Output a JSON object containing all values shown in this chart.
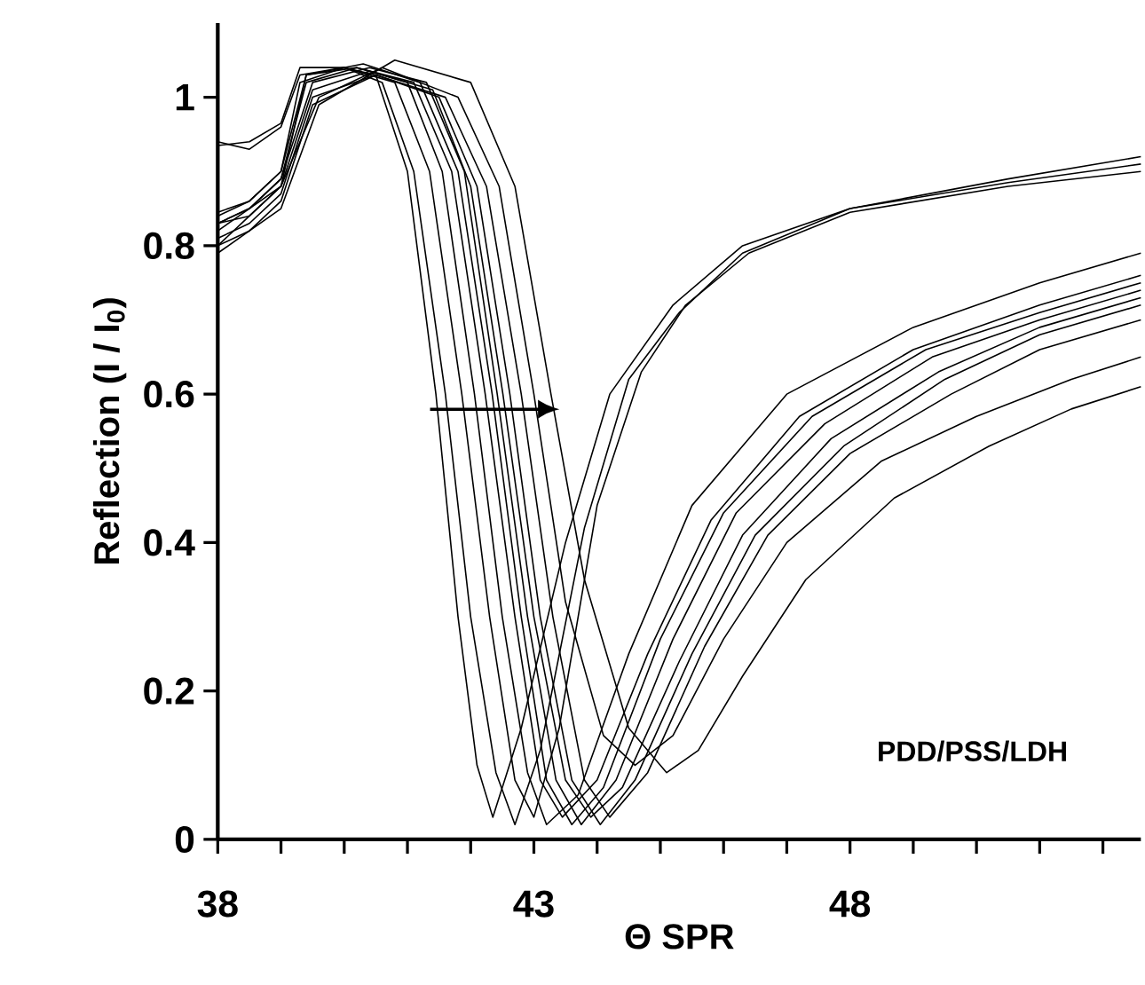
{
  "chart_data": {
    "type": "line",
    "xlabel": "Θ SPR",
    "ylabel": "Reflection (I / I$_{0}$)",
    "annotations": [
      "PDD/PSS/LDH"
    ],
    "xlim": [
      38,
      52.6
    ],
    "ylim": [
      0,
      1.1
    ],
    "xticks": [
      38,
      {
        "value": 39,
        "label": null
      },
      {
        "value": 40,
        "label": null
      },
      {
        "value": 41,
        "label": null
      },
      {
        "value": 42,
        "label": null
      },
      43,
      {
        "value": 44,
        "label": null
      },
      {
        "value": 45,
        "label": null
      },
      {
        "value": 46,
        "label": null
      },
      {
        "value": 47,
        "label": null
      },
      48,
      {
        "value": 49,
        "label": null
      },
      {
        "value": 50,
        "label": null
      },
      {
        "value": 51,
        "label": null
      },
      {
        "value": 52,
        "label": null
      }
    ],
    "yticks": [
      0,
      0.2,
      0.4,
      0.6,
      0.8,
      1
    ],
    "marker": "none",
    "line_style": "solid",
    "series": [
      {
        "color": "#000000",
        "x": [
          38,
          38.5,
          39,
          39.3,
          40,
          40.5,
          41.0,
          41.45,
          41.8,
          42.1,
          42.35,
          42.8,
          43.5,
          44.2,
          45.2,
          46.3,
          48,
          50.5,
          52.6
        ],
        "values": [
          0.94,
          0.93,
          0.96,
          1.03,
          1.04,
          1.03,
          0.9,
          0.6,
          0.3,
          0.1,
          0.03,
          0.15,
          0.4,
          0.6,
          0.72,
          0.8,
          0.85,
          0.89,
          0.92
        ]
      },
      {
        "color": "#000000",
        "x": [
          38,
          38.5,
          39,
          39.3,
          40,
          40.6,
          41.1,
          41.6,
          42,
          42.4,
          42.7,
          43.1,
          43.8,
          44.5,
          45.3,
          46.3,
          48,
          50.5,
          52.6
        ],
        "values": [
          0.935,
          0.94,
          0.965,
          1.04,
          1.04,
          1.02,
          0.9,
          0.6,
          0.3,
          0.09,
          0.02,
          0.12,
          0.42,
          0.62,
          0.71,
          0.79,
          0.85,
          0.885,
          0.91
        ]
      },
      {
        "color": "#000000",
        "x": [
          38,
          38.5,
          39,
          39.3,
          40,
          40.8,
          41.35,
          41.86,
          42.3,
          42.7,
          43.0,
          43.4,
          44.0,
          44.7,
          45.4,
          46.4,
          48,
          50.5,
          52.6
        ],
        "values": [
          0.84,
          0.86,
          0.9,
          1.02,
          1.04,
          1.02,
          0.9,
          0.6,
          0.3,
          0.08,
          0.03,
          0.15,
          0.45,
          0.63,
          0.72,
          0.79,
          0.845,
          0.88,
          0.9
        ]
      },
      {
        "color": "#000000",
        "x": [
          38,
          38.5,
          39,
          39.4,
          40.2,
          41.0,
          41.55,
          42.06,
          42.5,
          42.9,
          43.2,
          43.7,
          44.5,
          45.5,
          47,
          49,
          51,
          52.6
        ],
        "values": [
          0.83,
          0.85,
          0.89,
          1.02,
          1.04,
          1.02,
          0.9,
          0.6,
          0.3,
          0.09,
          0.02,
          0.06,
          0.25,
          0.45,
          0.6,
          0.69,
          0.75,
          0.79
        ]
      },
      {
        "color": "#000000",
        "x": [
          38,
          38.5,
          39,
          39.4,
          40.2,
          41.1,
          41.7,
          42.23,
          42.7,
          43.1,
          43.45,
          44.0,
          44.8,
          45.8,
          47.2,
          49,
          51,
          52.6
        ],
        "values": [
          0.8,
          0.84,
          0.88,
          1.03,
          1.04,
          1.02,
          0.9,
          0.6,
          0.3,
          0.08,
          0.03,
          0.08,
          0.25,
          0.43,
          0.57,
          0.66,
          0.72,
          0.76
        ]
      },
      {
        "color": "#000000",
        "x": [
          38,
          38.5,
          39,
          39.4,
          40.3,
          41.2,
          41.8,
          42.34,
          42.8,
          43.2,
          43.6,
          44.1,
          45.0,
          46.0,
          47.4,
          49.2,
          51,
          52.6
        ],
        "values": [
          0.845,
          0.86,
          0.9,
          1.03,
          1.045,
          1.02,
          0.9,
          0.6,
          0.3,
          0.08,
          0.02,
          0.07,
          0.27,
          0.44,
          0.57,
          0.66,
          0.71,
          0.75
        ]
      },
      {
        "color": "#000000",
        "x": [
          38,
          38.5,
          39,
          39.5,
          40.4,
          41.3,
          41.9,
          42.42,
          42.9,
          43.35,
          43.75,
          44.3,
          45.2,
          46.2,
          47.6,
          49.3,
          51,
          52.6
        ],
        "values": [
          0.82,
          0.85,
          0.89,
          1.02,
          1.04,
          1.02,
          0.9,
          0.6,
          0.3,
          0.08,
          0.02,
          0.08,
          0.27,
          0.44,
          0.56,
          0.65,
          0.7,
          0.74
        ]
      },
      {
        "color": "#000000",
        "x": [
          38,
          38.5,
          39,
          39.5,
          40.4,
          41.4,
          42.0,
          42.51,
          43,
          43.5,
          43.9,
          44.4,
          45.3,
          46.3,
          47.7,
          49.4,
          51,
          52.6
        ],
        "values": [
          0.83,
          0.84,
          0.88,
          1.01,
          1.035,
          1.01,
          0.88,
          0.6,
          0.3,
          0.08,
          0.03,
          0.07,
          0.24,
          0.41,
          0.54,
          0.63,
          0.69,
          0.73
        ]
      },
      {
        "color": "#000000",
        "x": [
          38,
          38.5,
          39,
          39.5,
          40.5,
          41.5,
          42.1,
          42.62,
          43.1,
          43.6,
          44.05,
          44.6,
          45.5,
          46.5,
          47.9,
          49.5,
          51,
          52.6
        ],
        "values": [
          0.81,
          0.83,
          0.87,
          1.0,
          1.03,
          1.0,
          0.88,
          0.6,
          0.3,
          0.08,
          0.02,
          0.08,
          0.25,
          0.41,
          0.53,
          0.62,
          0.68,
          0.72
        ]
      },
      {
        "color": "#000000",
        "x": [
          38,
          38.5,
          39,
          39.5,
          40.5,
          41.6,
          42.25,
          42.8,
          43.3,
          43.8,
          44.2,
          44.8,
          45.7,
          46.7,
          48,
          49.6,
          51,
          52.6
        ],
        "values": [
          0.8,
          0.82,
          0.86,
          0.99,
          1.03,
          1.0,
          0.88,
          0.6,
          0.3,
          0.08,
          0.03,
          0.09,
          0.26,
          0.41,
          0.52,
          0.6,
          0.66,
          0.7
        ]
      },
      {
        "color": "#000000",
        "x": [
          38,
          38.5,
          39,
          39.6,
          40.6,
          41.8,
          42.45,
          43.0,
          43.5,
          44.1,
          44.6,
          45.2,
          46,
          47,
          48.5,
          50,
          51.5,
          52.6
        ],
        "values": [
          0.83,
          0.85,
          0.88,
          1.0,
          1.04,
          1.0,
          0.88,
          0.6,
          0.32,
          0.14,
          0.1,
          0.14,
          0.27,
          0.4,
          0.51,
          0.57,
          0.62,
          0.65
        ]
      },
      {
        "color": "#000000",
        "x": [
          38,
          38.5,
          39,
          39.6,
          40.8,
          42.0,
          42.7,
          43.27,
          43.8,
          44.5,
          45.1,
          45.6,
          46.3,
          47.3,
          48.7,
          50.2,
          51.5,
          52.6
        ],
        "values": [
          0.79,
          0.82,
          0.85,
          0.99,
          1.05,
          1.02,
          0.88,
          0.6,
          0.35,
          0.15,
          0.09,
          0.12,
          0.22,
          0.35,
          0.46,
          0.53,
          0.58,
          0.61
        ]
      }
    ]
  }
}
